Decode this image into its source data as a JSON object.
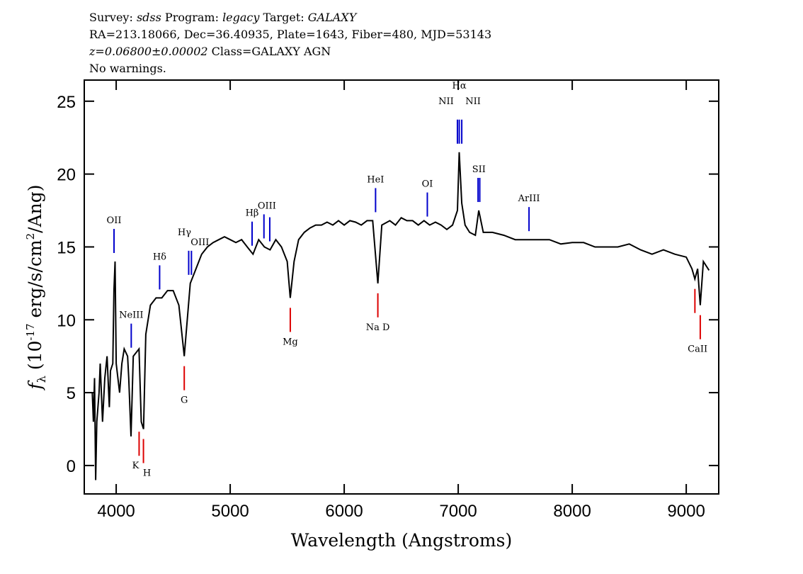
{
  "chart_data": {
    "type": "line",
    "header": {
      "line1": [
        "Survey:",
        "sdss",
        "Program:",
        "legacy",
        "Target:",
        "GALAXY"
      ],
      "line2": "RA=213.18066, Dec=36.40935, Plate=1643, Fiber=480, MJD=53143",
      "line3": [
        "z=0.06800±0.00002",
        "Class=GALAXY AGN"
      ],
      "line4": "No warnings."
    },
    "xlabel": "Wavelength (Angstroms)",
    "ylabel": [
      "f",
      "λ",
      " (10",
      "-17",
      " erg/s/cm",
      "2",
      "/Ang)"
    ],
    "xlim": [
      3720,
      9285
    ],
    "ylim": [
      -1.95,
      26.45
    ],
    "xticks": [
      4000,
      5000,
      6000,
      7000,
      8000,
      9000
    ],
    "yticks": [
      0,
      5,
      10,
      15,
      20,
      25
    ],
    "series": [
      {
        "color": "#000000",
        "x": [
          3790,
          3800,
          3810,
          3820,
          3830,
          3850,
          3860,
          3880,
          3900,
          3920,
          3940,
          3950,
          3970,
          3980,
          3990,
          4000,
          4030,
          4050,
          4070,
          4100,
          4110,
          4130,
          4150,
          4200,
          4220,
          4240,
          4260,
          4300,
          4350,
          4400,
          4450,
          4500,
          4550,
          4597,
          4650,
          4700,
          4750,
          4800,
          4850,
          4900,
          4950,
          5000,
          5050,
          5100,
          5150,
          5200,
          5250,
          5300,
          5350,
          5400,
          5450,
          5500,
          5527,
          5560,
          5600,
          5650,
          5700,
          5750,
          5800,
          5850,
          5900,
          5950,
          6000,
          6050,
          6100,
          6150,
          6200,
          6250,
          6295,
          6330,
          6400,
          6450,
          6500,
          6550,
          6600,
          6650,
          6700,
          6750,
          6800,
          6850,
          6900,
          6950,
          6993,
          7009,
          7031,
          7060,
          7100,
          7150,
          7180,
          7220,
          7300,
          7400,
          7500,
          7600,
          7700,
          7800,
          7900,
          8000,
          8100,
          8200,
          8300,
          8400,
          8500,
          8600,
          8700,
          8800,
          8900,
          9000,
          9050,
          9076,
          9100,
          9123,
          9150,
          9200
        ],
        "values": [
          5,
          3,
          6,
          -1,
          3,
          5,
          7,
          3,
          6,
          7.5,
          4,
          6.5,
          7,
          12,
          14,
          7,
          5,
          7,
          8,
          7.5,
          6,
          2,
          7.5,
          8,
          3,
          2.5,
          9,
          11,
          11.5,
          11.5,
          12,
          12,
          11,
          7.5,
          12.5,
          13.5,
          14.5,
          15,
          15.3,
          15.5,
          15.7,
          15.5,
          15.3,
          15.5,
          15,
          14.5,
          15.5,
          15,
          14.8,
          15.5,
          15,
          14,
          11.5,
          14,
          15.5,
          16,
          16.3,
          16.5,
          16.5,
          16.7,
          16.5,
          16.8,
          16.5,
          16.8,
          16.7,
          16.5,
          16.8,
          16.8,
          12.5,
          16.5,
          16.8,
          16.5,
          17,
          16.8,
          16.8,
          16.5,
          16.8,
          16.5,
          16.7,
          16.5,
          16.2,
          16.5,
          17.5,
          21.5,
          18,
          16.5,
          16,
          15.8,
          17.5,
          16,
          16,
          15.8,
          15.5,
          15.5,
          15.5,
          15.5,
          15.2,
          15.3,
          15.3,
          15,
          15,
          15,
          15.2,
          14.8,
          14.5,
          14.8,
          14.5,
          14.3,
          13.5,
          12.8,
          13.5,
          11,
          14,
          13.4
        ]
      }
    ],
    "emission_color": "#0000cc",
    "absorption_color": "#dd0000",
    "emission_lines": [
      {
        "label": "OII",
        "x": [
          3981
        ]
      },
      {
        "label": "NeIII",
        "x": [
          4132
        ]
      },
      {
        "label": "Hδ",
        "x": [
          4381
        ]
      },
      {
        "label": "Hγ",
        "x": [
          4636
        ]
      },
      {
        "label": "OIII",
        "x": [
          4660
        ]
      },
      {
        "label": "Hβ",
        "x": [
          5192
        ]
      },
      {
        "label": "OIII",
        "x": [
          5296,
          5347
        ]
      },
      {
        "label": "HeI",
        "x": [
          6275
        ]
      },
      {
        "label": "OI",
        "x": [
          6729
        ]
      },
      {
        "label": "NII",
        "x": [
          6993
        ]
      },
      {
        "label": "Hα",
        "x": [
          7009
        ]
      },
      {
        "label": "NII",
        "x": [
          7031
        ]
      },
      {
        "label": "SII",
        "x": [
          7174,
          7189
        ]
      },
      {
        "label": "ArIII",
        "x": [
          7621
        ]
      }
    ],
    "absorption_lines": [
      {
        "label": "K",
        "x": [
          4201
        ]
      },
      {
        "label": "H",
        "x": [
          4239
        ]
      },
      {
        "label": "G",
        "x": [
          4597
        ]
      },
      {
        "label": "Mg",
        "x": [
          5527
        ]
      },
      {
        "label": "Na D",
        "x": [
          6295
        ]
      },
      {
        "label": "CaII",
        "x": [
          9076,
          9123
        ]
      }
    ]
  }
}
